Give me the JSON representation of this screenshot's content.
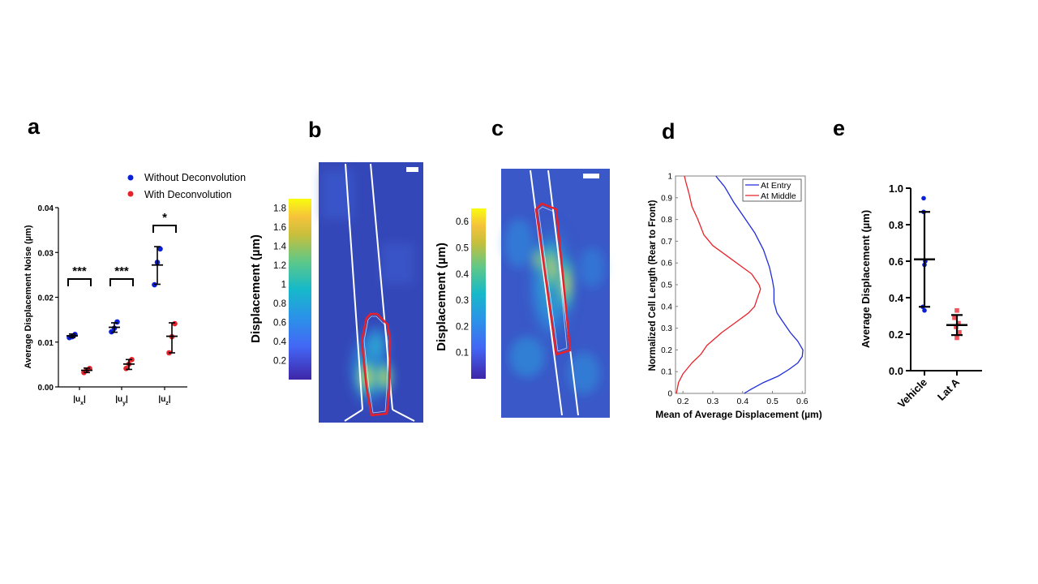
{
  "panels": {
    "a": {
      "letter": "a"
    },
    "b": {
      "letter": "b"
    },
    "c": {
      "letter": "c"
    },
    "d": {
      "letter": "d"
    },
    "e": {
      "letter": "e"
    }
  },
  "colors": {
    "blue_series": "#0a1fd8",
    "red_series": "#e8222a",
    "cell_outline": "#e8202a",
    "channel_lines": "#ffffff",
    "heatmap_background": "#3447b8"
  },
  "chart_data": [
    {
      "panel": "a",
      "type": "scatter",
      "categories": [
        "|u",
        "|u",
        "|u"
      ],
      "category_subscripts": [
        "x",
        "y",
        "z"
      ],
      "ylabel": "Average Displacement  Noise (µm)",
      "ylim": [
        0,
        0.04
      ],
      "yticks": [
        "0.00",
        "0.01",
        "0.02",
        "0.03",
        "0.04"
      ],
      "legend": "top-right",
      "series": [
        {
          "name": "Without Deconvolution",
          "color": "#0a1fd8",
          "points": [
            [
              0.011,
              0.0112,
              0.0117
            ],
            [
              0.0123,
              0.0131,
              0.0145
            ],
            [
              0.0228,
              0.0278,
              0.0308
            ]
          ],
          "mean": [
            0.0114,
            0.0133,
            0.0272
          ],
          "sd_low": [
            0.011,
            0.0122,
            0.0229
          ],
          "sd_high": [
            0.0118,
            0.0143,
            0.0313
          ]
        },
        {
          "name": "With Deconvolution",
          "color": "#e8222a",
          "points": [
            [
              0.0032,
              0.0037,
              0.0041
            ],
            [
              0.0041,
              0.0051,
              0.0061
            ],
            [
              0.0076,
              0.0112,
              0.0141
            ]
          ],
          "mean": [
            0.0037,
            0.0051,
            0.0113
          ],
          "sd_low": [
            0.0032,
            0.0039,
            0.0076
          ],
          "sd_high": [
            0.0042,
            0.0061,
            0.0143
          ]
        }
      ],
      "significance": [
        "***",
        "***",
        "*"
      ]
    },
    {
      "panel": "b",
      "type": "heatmap",
      "colorbar_label": "Displacement (µm)",
      "colorbar_range": [
        0,
        1.9
      ],
      "colorbar_ticks": [
        "1.8",
        "1.6",
        "1.4",
        "1.2",
        "1",
        "0.8",
        "0.6",
        "0.4",
        "0.2"
      ]
    },
    {
      "panel": "c",
      "type": "heatmap",
      "colorbar_label": "Displacement (µm)",
      "colorbar_range": [
        0,
        0.65
      ],
      "colorbar_ticks": [
        "0.6",
        "0.5",
        "0.4",
        "0.3",
        "0.2",
        "0.1"
      ]
    },
    {
      "panel": "d",
      "type": "line",
      "xlabel": "Mean of Average Displacement (µm)",
      "ylabel": "Normalized Cell Length (Rear to Front)",
      "xlim": [
        0.175,
        0.61
      ],
      "ylim": [
        0,
        1
      ],
      "xticks": [
        "0.2",
        "0.3",
        "0.4",
        "0.5",
        "0.6"
      ],
      "yticks": [
        "0",
        "0.1",
        "0.2",
        "0.3",
        "0.4",
        "0.5",
        "0.6",
        "0.7",
        "0.8",
        "0.9",
        "1"
      ],
      "legend": "top-right",
      "series": [
        {
          "name": "At Entry",
          "color": "#1f2bdc",
          "x": [
            0.405,
            0.43,
            0.47,
            0.52,
            0.555,
            0.585,
            0.6,
            0.602,
            0.585,
            0.56,
            0.535,
            0.515,
            0.505,
            0.505,
            0.5,
            0.49,
            0.47,
            0.44,
            0.4,
            0.37,
            0.34,
            0.31
          ],
          "y": [
            0,
            0.02,
            0.05,
            0.08,
            0.11,
            0.14,
            0.17,
            0.2,
            0.24,
            0.28,
            0.33,
            0.37,
            0.42,
            0.48,
            0.52,
            0.58,
            0.66,
            0.74,
            0.82,
            0.88,
            0.95,
            1.0
          ]
        },
        {
          "name": "At Middle",
          "color": "#e8222a",
          "x": [
            0.178,
            0.185,
            0.2,
            0.23,
            0.26,
            0.28,
            0.33,
            0.38,
            0.42,
            0.44,
            0.445,
            0.45,
            0.46,
            0.455,
            0.43,
            0.4,
            0.35,
            0.3,
            0.27,
            0.25,
            0.23,
            0.22,
            0.21,
            0.205
          ],
          "y": [
            0,
            0.05,
            0.09,
            0.14,
            0.18,
            0.22,
            0.28,
            0.33,
            0.37,
            0.4,
            0.42,
            0.44,
            0.48,
            0.5,
            0.55,
            0.58,
            0.63,
            0.68,
            0.73,
            0.8,
            0.86,
            0.92,
            0.97,
            1.0
          ]
        }
      ]
    },
    {
      "panel": "e",
      "type": "scatter",
      "categories": [
        "Vehicle",
        "Lat A"
      ],
      "ylabel": "Average Displacement (µm)",
      "ylim": [
        0,
        1.0
      ],
      "yticks": [
        "0.0",
        "0.2",
        "0.4",
        "0.6",
        "0.8",
        "1.0"
      ],
      "series": [
        {
          "name": "",
          "color": "#0a1fd8",
          "category": "Vehicle",
          "points": [
            0.945,
            0.87,
            0.6,
            0.58,
            0.35,
            0.33
          ],
          "mean": 0.61,
          "sd_low": 0.35,
          "sd_high": 0.87
        },
        {
          "name": "",
          "color": "#f2555e",
          "category": "Lat A",
          "points": [
            0.33,
            0.29,
            0.26,
            0.24,
            0.21,
            0.18
          ],
          "mean": 0.25,
          "sd_low": 0.195,
          "sd_high": 0.305
        }
      ]
    }
  ]
}
